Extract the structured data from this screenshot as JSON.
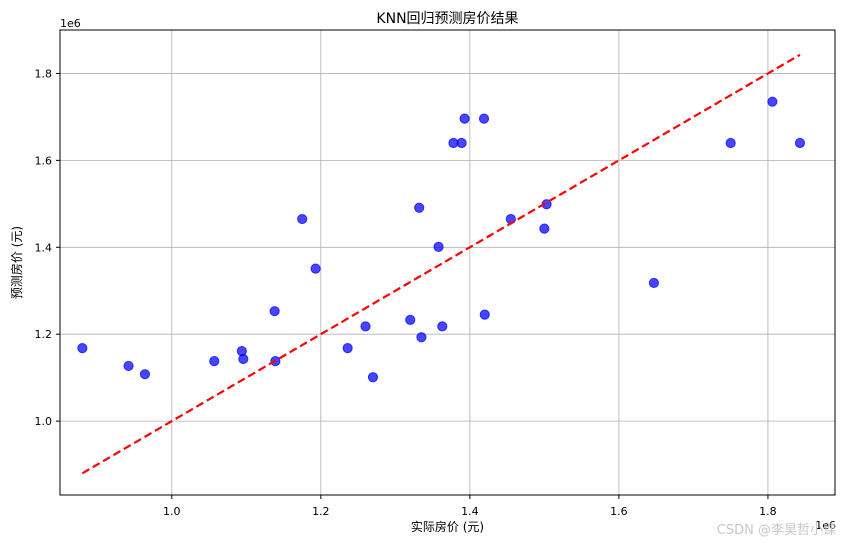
{
  "chart_data": {
    "type": "scatter",
    "title": "KNN回归预测房价结果",
    "xlabel": "实际房价 (元)",
    "ylabel": "预测房价 (元)",
    "x_offset_label": "1e6",
    "y_offset_label": "1e6",
    "xlim": [
      0.85,
      1.89
    ],
    "ylim": [
      0.83,
      1.9
    ],
    "xticks": [
      1.0,
      1.2,
      1.4,
      1.6,
      1.8
    ],
    "yticks": [
      1.0,
      1.2,
      1.4,
      1.6,
      1.8
    ],
    "xtick_labels": [
      "1.0",
      "1.2",
      "1.4",
      "1.6",
      "1.8"
    ],
    "ytick_labels": [
      "1.0",
      "1.2",
      "1.4",
      "1.6",
      "1.8"
    ],
    "grid": true,
    "point_color": "#0000ff",
    "line_color": "#ff0000",
    "points": [
      {
        "x": 0.88,
        "y": 1.168
      },
      {
        "x": 0.942,
        "y": 1.127
      },
      {
        "x": 0.964,
        "y": 1.108
      },
      {
        "x": 1.057,
        "y": 1.138
      },
      {
        "x": 1.094,
        "y": 1.161
      },
      {
        "x": 1.096,
        "y": 1.143
      },
      {
        "x": 1.138,
        "y": 1.253
      },
      {
        "x": 1.139,
        "y": 1.138
      },
      {
        "x": 1.175,
        "y": 1.465
      },
      {
        "x": 1.193,
        "y": 1.351
      },
      {
        "x": 1.236,
        "y": 1.168
      },
      {
        "x": 1.26,
        "y": 1.218
      },
      {
        "x": 1.27,
        "y": 1.101
      },
      {
        "x": 1.32,
        "y": 1.233
      },
      {
        "x": 1.332,
        "y": 1.491
      },
      {
        "x": 1.335,
        "y": 1.193
      },
      {
        "x": 1.358,
        "y": 1.401
      },
      {
        "x": 1.363,
        "y": 1.218
      },
      {
        "x": 1.378,
        "y": 1.64
      },
      {
        "x": 1.389,
        "y": 1.64
      },
      {
        "x": 1.393,
        "y": 1.696
      },
      {
        "x": 1.419,
        "y": 1.696
      },
      {
        "x": 1.42,
        "y": 1.245
      },
      {
        "x": 1.455,
        "y": 1.465
      },
      {
        "x": 1.5,
        "y": 1.443
      },
      {
        "x": 1.503,
        "y": 1.499
      },
      {
        "x": 1.647,
        "y": 1.318
      },
      {
        "x": 1.75,
        "y": 1.64
      },
      {
        "x": 1.806,
        "y": 1.735
      },
      {
        "x": 1.843,
        "y": 1.64
      }
    ],
    "reference_line": {
      "x": [
        0.88,
        1.843
      ],
      "y": [
        0.88,
        1.843
      ]
    }
  },
  "watermark": "CSDN @李昊哲小课"
}
